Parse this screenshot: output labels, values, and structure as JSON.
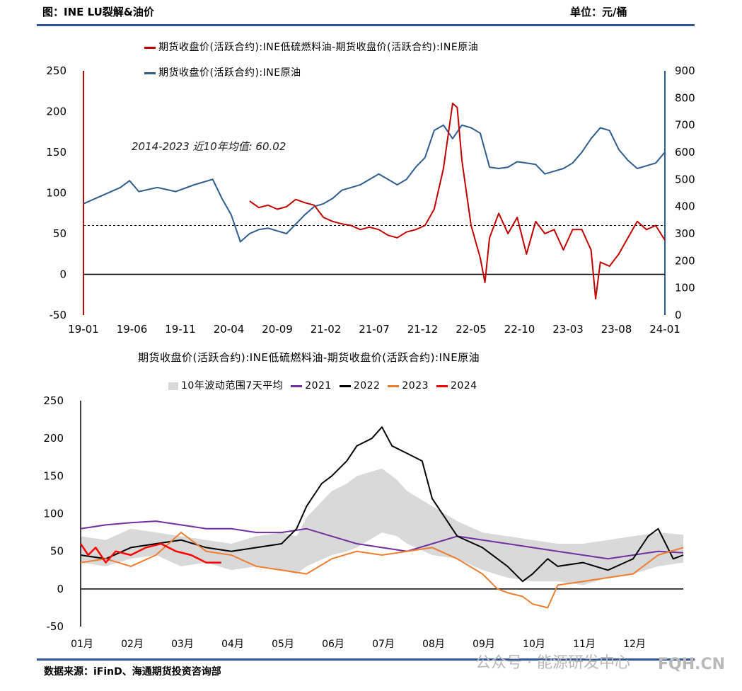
{
  "header": {
    "title": "图：INE LU裂解&油价",
    "unit": "单位：元/桶"
  },
  "colors": {
    "crack": "#c00000",
    "crude": "#2e5d8e",
    "y2021": "#7030a0",
    "y2022": "#000000",
    "y2023": "#ed7d31",
    "y2024": "#ff0000",
    "band": "#d9d9d9",
    "accent": "#2f5597"
  },
  "chart_data": [
    {
      "type": "line",
      "legend": {
        "crack": "期货收盘价(活跃合约):INE低硫燃料油-期货收盘价(活跃合约):INE原油",
        "crude": "期货收盘价(活跃合约):INE原油"
      },
      "annotation": "2014-2023 近10年均值: 60.02",
      "mean_line": 60.02,
      "x_ticks": [
        "19-01",
        "19-06",
        "19-11",
        "20-04",
        "20-09",
        "21-02",
        "21-07",
        "21-12",
        "22-05",
        "22-10",
        "23-03",
        "23-08",
        "24-01"
      ],
      "xlim": [
        0,
        63
      ],
      "ylim_left": [
        -50,
        250
      ],
      "ylim_right": [
        0,
        900
      ],
      "y_ticks_left": [
        -50,
        0,
        50,
        100,
        150,
        200,
        250
      ],
      "y_ticks_right": [
        0,
        100,
        200,
        300,
        400,
        500,
        600,
        700,
        800,
        900
      ],
      "series": [
        {
          "name": "期货收盘价(活跃合约):INE原油",
          "axis": "right",
          "x": [
            0,
            2,
            4,
            5,
            6,
            8,
            10,
            12,
            14,
            15,
            16,
            17,
            18,
            19,
            20,
            22,
            24,
            25,
            26,
            27,
            28,
            30,
            32,
            34,
            35,
            36,
            37,
            38,
            39,
            40,
            41,
            42,
            43,
            44,
            45,
            46,
            47,
            48,
            49,
            50,
            51,
            52,
            53,
            54,
            55,
            56,
            57,
            58,
            59,
            60,
            61,
            62,
            63
          ],
          "values": [
            410,
            440,
            470,
            495,
            455,
            470,
            455,
            480,
            500,
            430,
            370,
            270,
            300,
            315,
            320,
            300,
            370,
            400,
            410,
            430,
            460,
            480,
            520,
            480,
            500,
            545,
            580,
            680,
            700,
            650,
            700,
            690,
            670,
            545,
            540,
            545,
            565,
            560,
            555,
            520,
            530,
            540,
            560,
            600,
            650,
            690,
            680,
            610,
            570,
            540,
            550,
            560,
            600
          ]
        },
        {
          "name": "期货收盘价(活跃合约):INE低硫燃料油-期货收盘价(活跃合约):INE原油",
          "axis": "left",
          "x": [
            18,
            19,
            20,
            21,
            22,
            23,
            24,
            25,
            26,
            27,
            28,
            29,
            30,
            31,
            32,
            33,
            34,
            35,
            36,
            37,
            38,
            39,
            40,
            40.5,
            41,
            42,
            43,
            43.5,
            44,
            45,
            46,
            47,
            48,
            49,
            50,
            51,
            52,
            53,
            54,
            55,
            55.5,
            56,
            57,
            58,
            59,
            60,
            61,
            62,
            63
          ],
          "values": [
            90,
            82,
            85,
            80,
            83,
            92,
            88,
            85,
            70,
            65,
            62,
            60,
            55,
            58,
            55,
            48,
            45,
            52,
            55,
            60,
            80,
            130,
            210,
            205,
            140,
            60,
            20,
            -10,
            45,
            75,
            50,
            70,
            25,
            65,
            50,
            55,
            30,
            55,
            55,
            30,
            -30,
            15,
            10,
            25,
            45,
            65,
            55,
            60,
            42
          ]
        }
      ]
    },
    {
      "type": "line",
      "title": "期货收盘价(活跃合约):INE低硫燃料油-期货收盘价(活跃合约):INE原油",
      "legend_band": "10年波动范围7天平均",
      "x_ticks": [
        "01月",
        "02月",
        "03月",
        "04月",
        "05月",
        "06月",
        "07月",
        "08月",
        "09月",
        "10月",
        "11月",
        "12月"
      ],
      "xlim": [
        0,
        12
      ],
      "ylim": [
        -50,
        250
      ],
      "y_ticks": [
        -50,
        0,
        50,
        100,
        150,
        200,
        250
      ],
      "band": {
        "x": [
          0,
          0.5,
          1,
          1.5,
          2,
          2.5,
          3,
          3.5,
          4,
          4.3,
          4.5,
          5,
          5.3,
          5.5,
          6,
          6.3,
          6.5,
          7,
          7.5,
          8,
          8.5,
          9,
          9.5,
          10,
          10.5,
          11,
          11.5,
          12
        ],
        "low": [
          35,
          30,
          40,
          45,
          30,
          35,
          25,
          30,
          25,
          20,
          30,
          45,
          50,
          55,
          75,
          70,
          60,
          45,
          40,
          25,
          15,
          10,
          10,
          5,
          15,
          20,
          30,
          35
        ],
        "high": [
          70,
          65,
          80,
          75,
          70,
          65,
          60,
          70,
          75,
          70,
          95,
          130,
          140,
          150,
          160,
          145,
          130,
          110,
          90,
          75,
          70,
          65,
          60,
          60,
          65,
          70,
          75,
          72
        ]
      },
      "series": [
        {
          "name": "2021",
          "x": [
            0,
            0.5,
            1,
            1.5,
            2,
            2.5,
            3,
            3.5,
            4,
            4.5,
            5,
            5.5,
            6,
            6.5,
            7,
            7.5,
            8,
            8.5,
            9,
            9.5,
            10,
            10.5,
            11,
            11.5,
            12
          ],
          "values": [
            80,
            85,
            88,
            90,
            85,
            80,
            80,
            75,
            75,
            80,
            70,
            60,
            55,
            50,
            60,
            70,
            65,
            60,
            55,
            50,
            45,
            40,
            45,
            50,
            48
          ]
        },
        {
          "name": "2022",
          "x": [
            0,
            0.5,
            1,
            1.5,
            2,
            2.5,
            3,
            3.5,
            4,
            4.3,
            4.5,
            4.8,
            5,
            5.3,
            5.5,
            5.8,
            6,
            6.2,
            6.5,
            6.8,
            7,
            7.3,
            7.5,
            8,
            8.3,
            8.5,
            8.8,
            9,
            9.3,
            9.5,
            10,
            10.5,
            11,
            11.3,
            11.5,
            11.8,
            12
          ],
          "values": [
            45,
            40,
            55,
            60,
            65,
            55,
            50,
            55,
            60,
            80,
            110,
            140,
            150,
            170,
            190,
            200,
            215,
            190,
            180,
            170,
            120,
            90,
            70,
            55,
            40,
            30,
            10,
            20,
            40,
            30,
            35,
            25,
            40,
            70,
            80,
            40,
            45
          ]
        },
        {
          "name": "2023",
          "x": [
            0,
            0.5,
            1,
            1.5,
            2,
            2.5,
            3,
            3.5,
            4,
            4.5,
            5,
            5.5,
            6,
            6.5,
            7,
            7.5,
            8,
            8.3,
            8.5,
            8.8,
            9,
            9.3,
            9.5,
            10,
            10.5,
            11,
            11.5,
            12
          ],
          "values": [
            35,
            40,
            30,
            45,
            75,
            50,
            45,
            30,
            25,
            20,
            40,
            50,
            45,
            50,
            55,
            40,
            20,
            0,
            -5,
            -10,
            -20,
            -25,
            5,
            10,
            15,
            20,
            45,
            55
          ]
        },
        {
          "name": "2024",
          "x": [
            0,
            0.15,
            0.3,
            0.5,
            0.7,
            1,
            1.3,
            1.6,
            1.9,
            2.2,
            2.5,
            2.8
          ],
          "values": [
            60,
            45,
            55,
            35,
            50,
            45,
            55,
            60,
            50,
            45,
            35,
            35
          ]
        }
      ]
    }
  ],
  "footer": {
    "source": "数据来源：iFinD、海通期货投资咨询部"
  },
  "watermark": {
    "text": "公众号 · 能源研发中心",
    "site": "FQH.CN"
  }
}
